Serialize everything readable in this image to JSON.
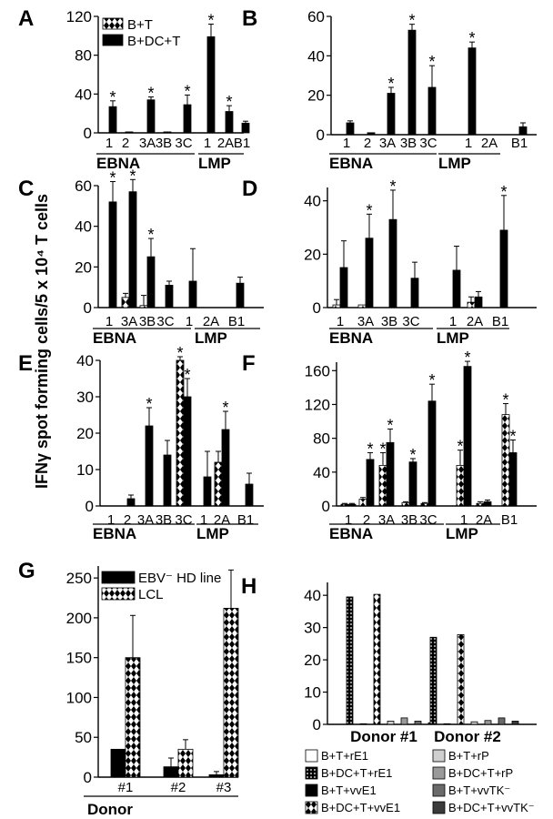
{
  "shared_ylabel": "IFNγ spot forming cells/5 x 10⁴ T cells",
  "chart_data": [
    {
      "panel": "A",
      "type": "bar",
      "categories": [
        "1",
        "2",
        "3A",
        "3B",
        "3C",
        "1",
        "2A",
        "B1"
      ],
      "group_labels": [
        "EBNA",
        "LMP"
      ],
      "ylim": [
        0,
        120
      ],
      "yticks": [
        0,
        40,
        80,
        120
      ],
      "legend": {
        "placement": "top-left",
        "entries": [
          "B+T",
          "B+DC+T"
        ]
      },
      "series": [
        {
          "name": "B+T",
          "pattern": "diamond",
          "values": [
            0,
            0,
            0,
            0,
            0,
            0,
            0,
            0
          ],
          "errors": [
            0,
            0,
            0,
            0,
            0,
            0,
            0,
            0
          ]
        },
        {
          "name": "B+DC+T",
          "pattern": "solid",
          "values": [
            27,
            1,
            34,
            1,
            29,
            99,
            22,
            10
          ],
          "errors": [
            6,
            0,
            3,
            0,
            10,
            13,
            6,
            2
          ]
        }
      ],
      "significant": [
        [
          1,
          0
        ],
        [
          1,
          2
        ],
        [
          1,
          4
        ],
        [
          1,
          5
        ],
        [
          1,
          6
        ]
      ]
    },
    {
      "panel": "B",
      "type": "bar",
      "categories": [
        "1",
        "2",
        "3A",
        "3B",
        "3C",
        "1",
        "2A",
        "B1"
      ],
      "group_labels": [
        "EBNA",
        "LMP"
      ],
      "ylim": [
        0,
        60
      ],
      "yticks": [
        0,
        20,
        40,
        60
      ],
      "series": [
        {
          "name": "B+T",
          "pattern": "diamond",
          "values": [
            0,
            0,
            0,
            0,
            0,
            0,
            0,
            0
          ],
          "errors": [
            0,
            0,
            0,
            0,
            0,
            0,
            0,
            0
          ]
        },
        {
          "name": "B+DC+T",
          "pattern": "solid",
          "values": [
            6,
            1,
            21,
            53,
            24,
            44,
            0,
            4
          ],
          "errors": [
            1,
            0,
            3,
            3,
            11,
            3,
            0,
            2
          ]
        }
      ],
      "significant": [
        [
          1,
          2
        ],
        [
          1,
          3
        ],
        [
          1,
          4
        ],
        [
          1,
          5
        ]
      ]
    },
    {
      "panel": "C",
      "type": "bar",
      "categories": [
        "1",
        "3A",
        "3B",
        "3C",
        "1",
        "2A",
        "B1"
      ],
      "group_labels": [
        "EBNA",
        "LMP"
      ],
      "ylim": [
        0,
        60
      ],
      "yticks": [
        0,
        20,
        40,
        60
      ],
      "series": [
        {
          "name": "B+T",
          "pattern": "diamond",
          "values": [
            0,
            5,
            1,
            0,
            0,
            0,
            0
          ],
          "errors": [
            0,
            2,
            5,
            0,
            0,
            0,
            0
          ]
        },
        {
          "name": "B+DC+T",
          "pattern": "solid",
          "values": [
            52,
            57,
            25,
            11,
            13,
            0,
            12
          ],
          "errors": [
            10,
            6,
            9,
            2,
            16,
            0,
            3
          ]
        }
      ],
      "significant": [
        [
          1,
          0
        ],
        [
          1,
          1
        ],
        [
          1,
          2
        ]
      ]
    },
    {
      "panel": "D",
      "type": "bar",
      "categories": [
        "1",
        "3A",
        "3B",
        "3C",
        "1",
        "2A",
        "B1"
      ],
      "group_labels": [
        "EBNA",
        "LMP"
      ],
      "ylim": [
        0,
        45
      ],
      "yticks": [
        0,
        20,
        40
      ],
      "series": [
        {
          "name": "B+T",
          "pattern": "diamond",
          "values": [
            1,
            1,
            0,
            0,
            0,
            2,
            0
          ],
          "errors": [
            2,
            0,
            0,
            0,
            0,
            2,
            0
          ]
        },
        {
          "name": "B+DC+T",
          "pattern": "solid",
          "values": [
            15,
            26,
            33,
            11,
            14,
            4,
            29
          ],
          "errors": [
            10,
            9,
            11,
            6,
            9,
            2,
            13
          ]
        }
      ],
      "significant": [
        [
          1,
          1
        ],
        [
          1,
          2
        ],
        [
          1,
          6
        ]
      ]
    },
    {
      "panel": "E",
      "type": "bar",
      "categories": [
        "1",
        "2",
        "3A",
        "3B",
        "3C",
        "1",
        "2A",
        "B1"
      ],
      "group_labels": [
        "EBNA",
        "LMP"
      ],
      "ylim": [
        0,
        40
      ],
      "yticks": [
        0,
        10,
        20,
        30,
        40
      ],
      "series": [
        {
          "name": "B+T",
          "pattern": "diamond",
          "values": [
            0,
            0,
            0,
            0,
            40,
            0,
            12,
            0
          ],
          "errors": [
            0,
            0,
            0,
            0,
            1,
            0,
            3,
            0
          ]
        },
        {
          "name": "B+DC+T",
          "pattern": "solid",
          "values": [
            0,
            2,
            22,
            14,
            30,
            8,
            21,
            6
          ],
          "errors": [
            0,
            1,
            5,
            4,
            5,
            7,
            5,
            3
          ]
        }
      ],
      "significant": [
        [
          1,
          2
        ],
        [
          0,
          4
        ],
        [
          1,
          4
        ],
        [
          1,
          6
        ]
      ]
    },
    {
      "panel": "F",
      "type": "bar",
      "categories": [
        "1",
        "2",
        "3A",
        "3B",
        "3C",
        "1",
        "2A",
        "B1"
      ],
      "group_labels": [
        "EBNA",
        "LMP"
      ],
      "ylim": [
        0,
        170
      ],
      "yticks": [
        0,
        40,
        80,
        120,
        160
      ],
      "series": [
        {
          "name": "B+T",
          "pattern": "diamond",
          "values": [
            2,
            8,
            48,
            4,
            3,
            48,
            3,
            108
          ],
          "errors": [
            1,
            2,
            15,
            1,
            1,
            18,
            2,
            13
          ]
        },
        {
          "name": "B+DC+T",
          "pattern": "solid",
          "values": [
            2,
            55,
            75,
            52,
            124,
            165,
            5,
            63
          ],
          "errors": [
            1,
            8,
            16,
            4,
            20,
            6,
            2,
            15
          ]
        }
      ],
      "significant": [
        [
          1,
          1
        ],
        [
          0,
          2
        ],
        [
          1,
          2
        ],
        [
          1,
          3
        ],
        [
          1,
          4
        ],
        [
          0,
          5
        ],
        [
          1,
          5
        ],
        [
          0,
          7
        ],
        [
          1,
          7
        ]
      ]
    },
    {
      "panel": "G",
      "type": "bar",
      "categories": [
        "#1",
        "#2",
        "#3"
      ],
      "xlabel": "Donor",
      "ylim": [
        0,
        265
      ],
      "yticks": [
        0,
        50,
        100,
        150,
        200,
        250
      ],
      "legend": {
        "placement": "top-left",
        "entries": [
          "EBV⁻ HD line",
          "LCL"
        ]
      },
      "series": [
        {
          "name": "EBV⁻ HD line",
          "pattern": "solid",
          "values": [
            35,
            13,
            3
          ],
          "errors": [
            0,
            11,
            4
          ]
        },
        {
          "name": "LCL",
          "pattern": "diamond",
          "values": [
            150,
            35,
            212
          ],
          "errors": [
            53,
            12,
            48
          ]
        }
      ]
    },
    {
      "panel": "H",
      "type": "bar",
      "categories": [
        "Donor #1",
        "Donor #2"
      ],
      "ylim": [
        0,
        44
      ],
      "yticks": [
        0,
        10,
        20,
        30,
        40
      ],
      "legend": {
        "placement": "bottom",
        "entries": [
          "B+T+rE1",
          "B+T+rP",
          "B+DC+T+rE1",
          "B+DC+T+rP",
          "B+T+vvE1",
          "B+T+vvTK⁻",
          "B+DC+T+vvE1",
          "B+DC+T+vvTK⁻"
        ]
      },
      "series": [
        {
          "name": "B+T+rE1",
          "pattern": "open",
          "values": [
            0,
            0
          ]
        },
        {
          "name": "B+DC+T+rE1",
          "pattern": "dots",
          "values": [
            39.5,
            27
          ]
        },
        {
          "name": "B+T+vvE1",
          "pattern": "solid",
          "values": [
            0.2,
            0.2
          ]
        },
        {
          "name": "B+DC+T+vvE1",
          "pattern": "diamond",
          "values": [
            40.3,
            27.8
          ]
        },
        {
          "name": "B+T+rP",
          "pattern": "light",
          "values": [
            1,
            0.8
          ]
        },
        {
          "name": "B+DC+T+rP",
          "pattern": "medium",
          "values": [
            2,
            1.2
          ]
        },
        {
          "name": "B+T+vvTK⁻",
          "pattern": "dark",
          "values": [
            1,
            2
          ]
        },
        {
          "name": "B+DC+T+vvTK⁻",
          "pattern": "darkest",
          "values": [
            0.5,
            1
          ]
        }
      ]
    }
  ]
}
